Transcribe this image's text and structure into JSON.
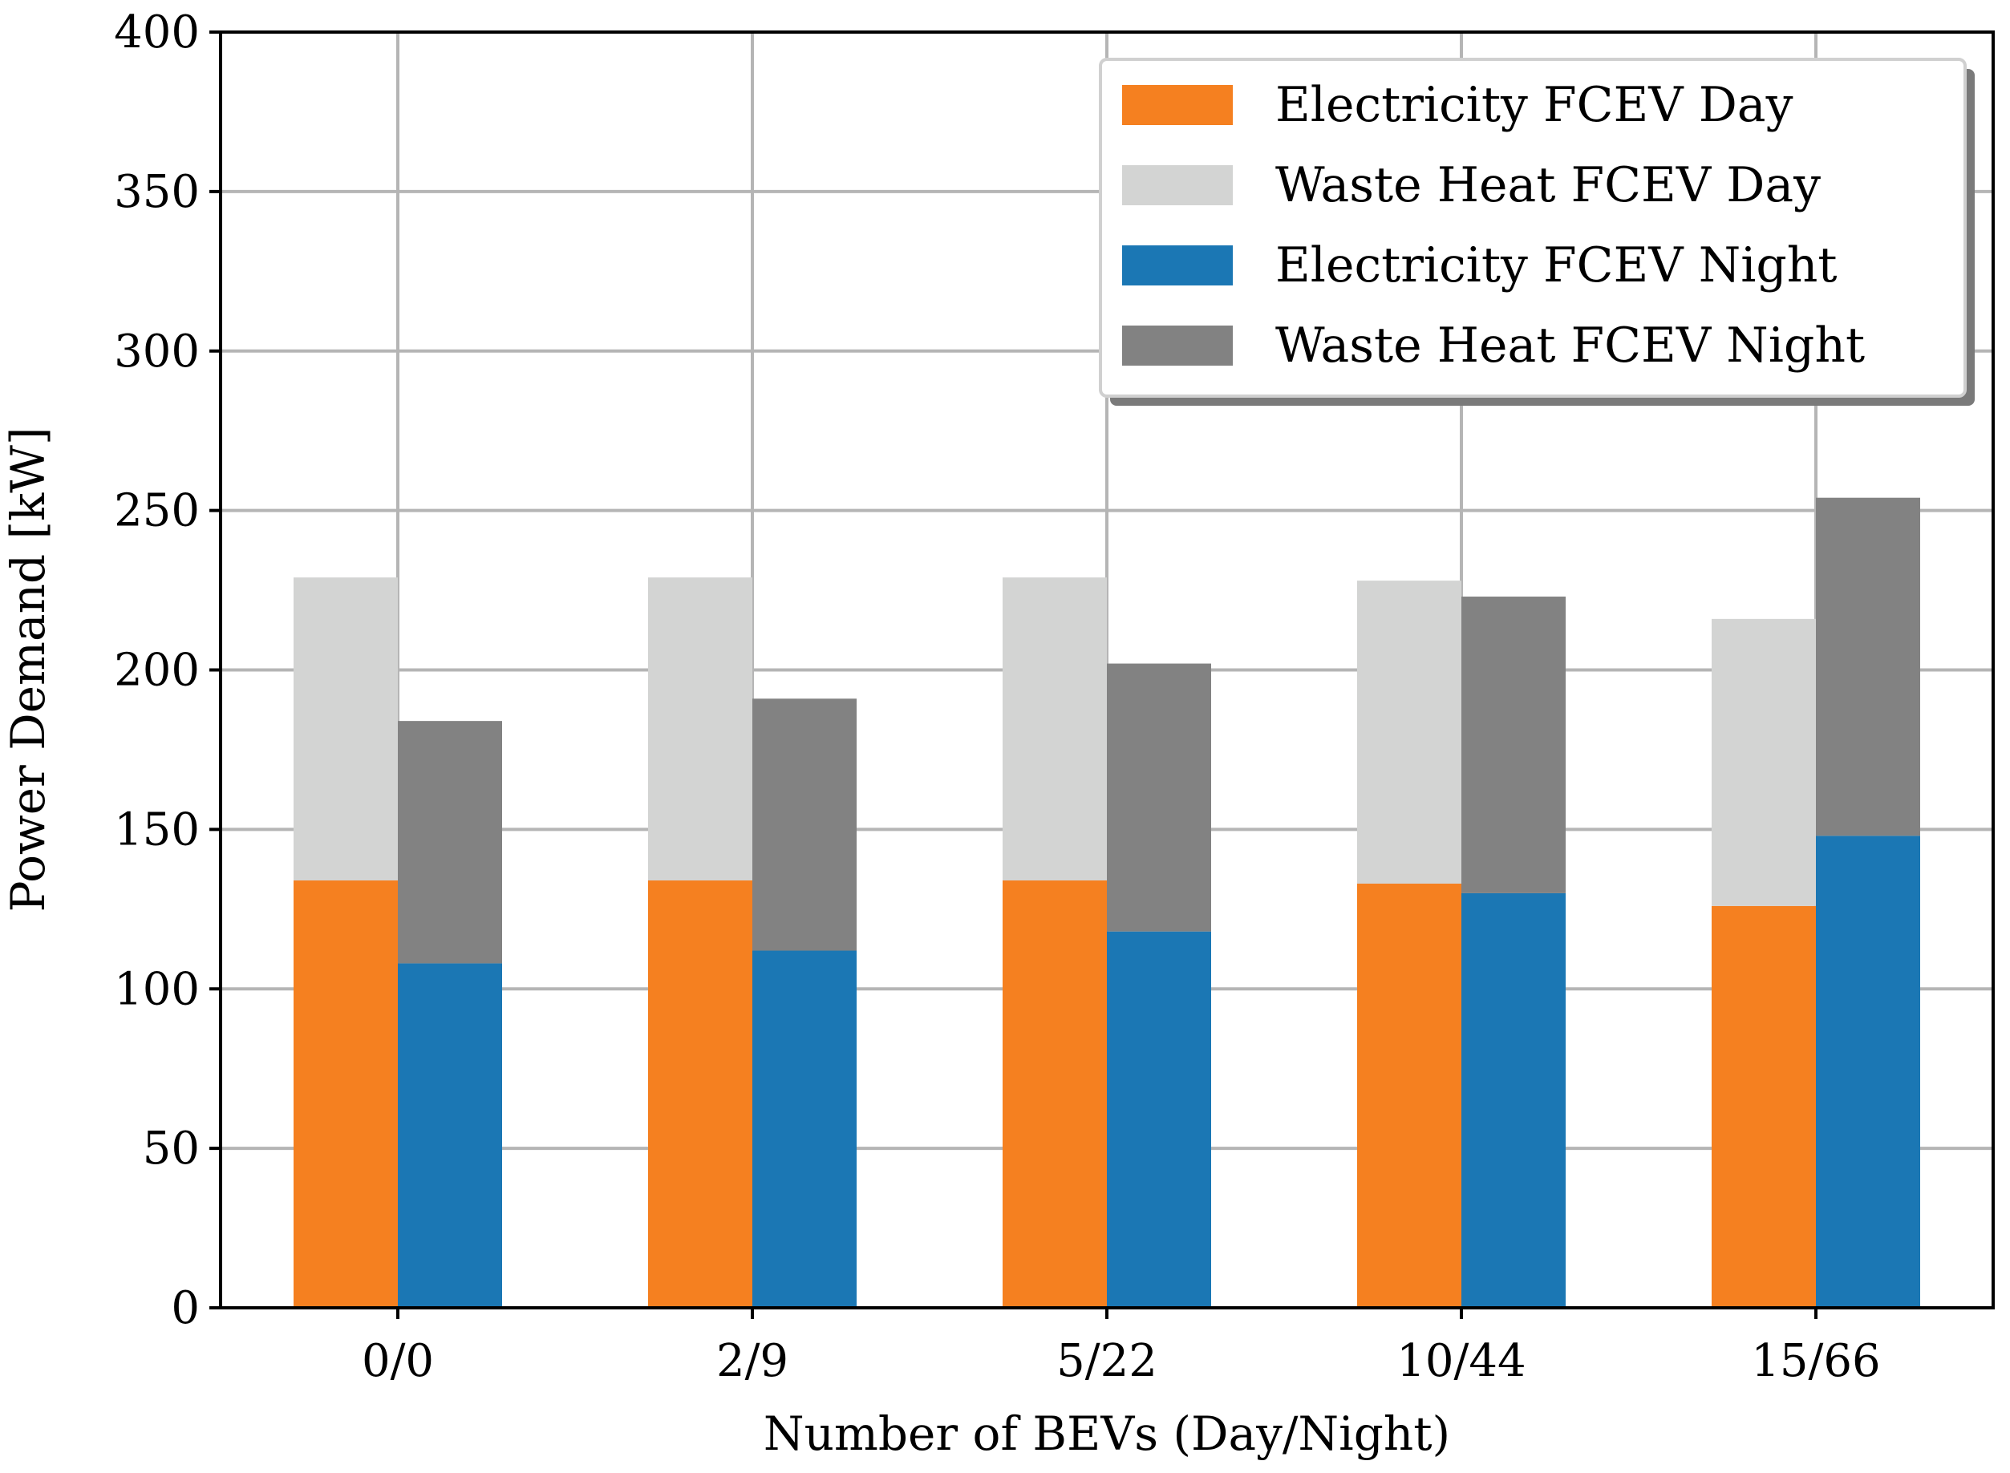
{
  "chart_data": {
    "type": "bar",
    "stacked": true,
    "grouped": true,
    "title": "",
    "xlabel": "Number of BEVs (Day/Night)",
    "ylabel": "Power Demand [kW]",
    "ylim": [
      0,
      400
    ],
    "yticks": [
      0,
      50,
      100,
      150,
      200,
      250,
      300,
      350,
      400
    ],
    "categories": [
      "0/0",
      "2/9",
      "5/22",
      "10/44",
      "15/66"
    ],
    "grid": true,
    "legend_position": "top-right",
    "groups": [
      {
        "name": "Day",
        "series": [
          {
            "name": "Electricity FCEV Day",
            "color": "#f58020",
            "values": [
              134,
              134,
              134,
              133,
              126
            ]
          },
          {
            "name": "Waste Heat FCEV Day",
            "color": "#d3d4d3",
            "values": [
              95,
              95,
              95,
              95,
              90
            ]
          }
        ]
      },
      {
        "name": "Night",
        "series": [
          {
            "name": "Electricity FCEV Night",
            "color": "#1b77b4",
            "values": [
              108,
              112,
              118,
              130,
              148
            ]
          },
          {
            "name": "Waste Heat FCEV Night",
            "color": "#828282",
            "values": [
              76,
              79,
              84,
              93,
              106
            ]
          }
        ]
      }
    ],
    "legend": [
      {
        "label": "Electricity FCEV Day",
        "color": "#f58020"
      },
      {
        "label": "Waste Heat FCEV Day",
        "color": "#d3d4d3"
      },
      {
        "label": "Electricity FCEV Night",
        "color": "#1b77b4"
      },
      {
        "label": "Waste Heat FCEV Night",
        "color": "#828282"
      }
    ]
  }
}
